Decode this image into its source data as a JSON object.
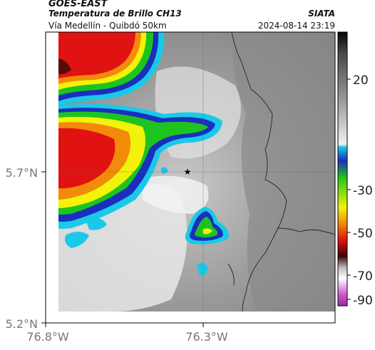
{
  "header": {
    "satellite": "GOES-EAST",
    "product": "Temperatura de Brillo CH13",
    "organization": "SIATA",
    "route": "Vía Medellín - Quibdó 50km",
    "timestamp": "2024-08-14 23:19"
  },
  "map": {
    "lat_ticks": [
      "5.7°N",
      "5.2°N"
    ],
    "lon_ticks": [
      "76.8°W",
      "76.3°W"
    ],
    "marker_symbol": "★"
  },
  "colorbar": {
    "ticks": [
      "20",
      "-30",
      "-50",
      "-70",
      "-90"
    ],
    "colors": {
      "warm_top": "#0a0a0a",
      "gray": "#8c8c8c",
      "white": "#f2f2f2",
      "cyan": "#2fc4e8",
      "blue": "#1a2fc0",
      "green": "#1ec41e",
      "yellow": "#f2f20a",
      "orange": "#f27a0a",
      "red": "#e01212",
      "darkred": "#5a0a0a",
      "magenta": "#c040c0"
    }
  }
}
